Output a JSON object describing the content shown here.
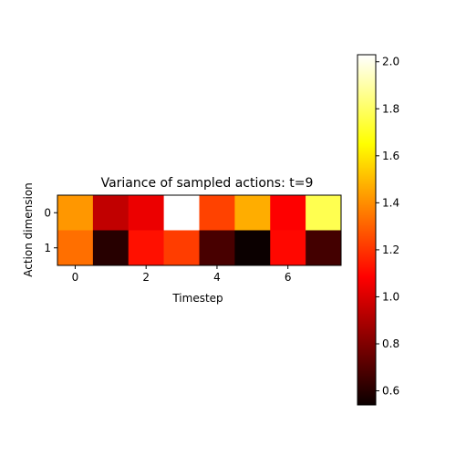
{
  "chart_data": {
    "type": "heatmap",
    "title": "Variance of sampled actions: t=9",
    "xlabel": "Timestep",
    "ylabel": "Action dimension",
    "colormap": "hot",
    "x_ticks": [
      0,
      2,
      4,
      6
    ],
    "y_ticks": [
      0,
      1
    ],
    "rows": [
      0,
      1
    ],
    "columns": [
      0,
      1,
      2,
      3,
      4,
      5,
      6,
      7
    ],
    "values": [
      [
        1.42,
        0.93,
        1.02,
        2.03,
        1.23,
        1.47,
        1.06,
        1.77
      ],
      [
        1.33,
        0.6,
        1.12,
        1.22,
        0.67,
        0.54,
        1.1,
        0.66
      ]
    ],
    "colorbar": {
      "vmin": 0.54,
      "vmax": 2.03,
      "ticks": [
        0.6,
        0.8,
        1.0,
        1.2,
        1.4,
        1.6,
        1.8,
        2.0
      ],
      "tick_labels": [
        "0.6",
        "0.8",
        "1.0",
        "1.2",
        "1.4",
        "1.6",
        "1.8",
        "2.0"
      ]
    }
  }
}
